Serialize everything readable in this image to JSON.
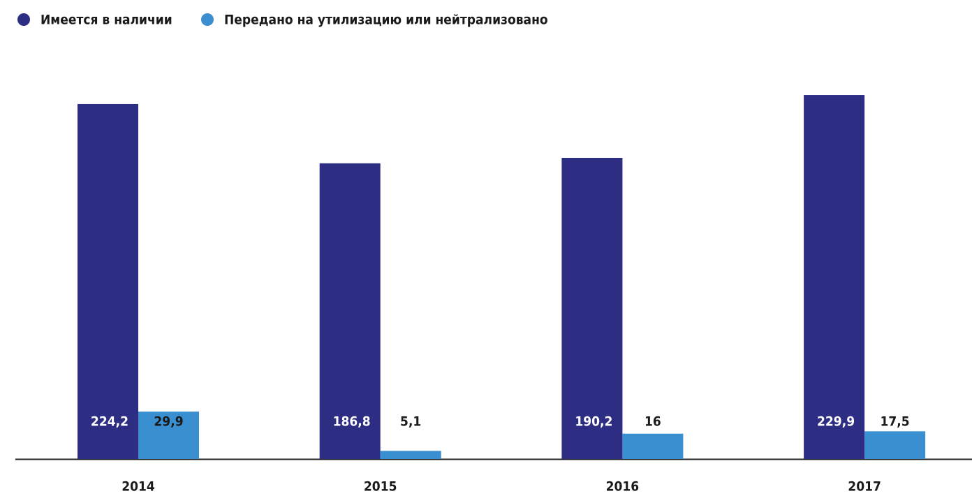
{
  "chart_data": {
    "type": "bar",
    "categories": [
      "2014",
      "2015",
      "2016",
      "2017"
    ],
    "series": [
      {
        "name": "Имеется в наличии",
        "color": "#2e2d84",
        "values": [
          224.2,
          186.8,
          190.2,
          229.9
        ],
        "value_labels": [
          "224,2",
          "186,8",
          "190,2",
          "229,9"
        ]
      },
      {
        "name": "Передано на утилизацию или нейтрализовано",
        "color": "#3a8fd0",
        "values": [
          29.9,
          5.1,
          16,
          17.5
        ],
        "value_labels": [
          "29,9",
          "5,1",
          "16",
          "17,5"
        ]
      }
    ]
  }
}
